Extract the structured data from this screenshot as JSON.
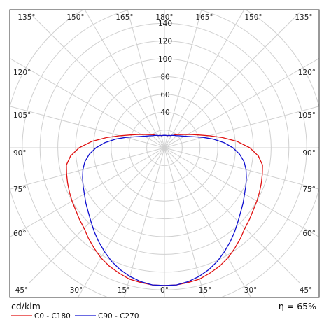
{
  "chart_data": {
    "type": "polar-luminous-intensity",
    "unit_label": "cd/klm",
    "efficiency_label": "η = 65%",
    "radial_range": [
      0,
      180
    ],
    "radial_ticks": [
      20,
      40,
      60,
      80,
      100,
      120,
      140,
      160,
      180
    ],
    "radial_tick_labels": [
      "40",
      "60",
      "80",
      "100",
      "120",
      "140"
    ],
    "angle_ticks_deg": [
      0,
      15,
      30,
      45,
      60,
      75,
      90,
      105,
      120,
      135,
      150,
      165,
      180
    ],
    "angle_labels": {
      "top": [
        "135°",
        "150°",
        "165°",
        "180°",
        "165°",
        "150°",
        "135°"
      ],
      "left": [
        "120°",
        "105°",
        "90°",
        "75°",
        "60°"
      ],
      "right": [
        "120°",
        "105°",
        "90°",
        "75°",
        "60°"
      ],
      "bottom": [
        "45°",
        "30°",
        "15°",
        "0°",
        "15°",
        "30°",
        "45°"
      ]
    },
    "grid": true,
    "legend_position": "bottom-left",
    "series": [
      {
        "name": "C0 - C180",
        "color": "#e01010",
        "angles_deg": [
          0,
          5,
          10,
          15,
          20,
          25,
          30,
          35,
          40,
          45,
          50,
          55,
          60,
          65,
          70,
          75,
          80,
          85,
          90,
          95,
          100,
          105,
          110,
          115,
          120,
          125,
          130,
          135,
          140,
          145,
          150,
          155,
          160,
          165,
          170,
          175,
          180
        ],
        "values": [
          155,
          155,
          154,
          153,
          150,
          147,
          143,
          138,
          133,
          128,
          125,
          122,
          120,
          118,
          116,
          114,
          112,
          106,
          96,
          82,
          66,
          52,
          42,
          35,
          30,
          26,
          23,
          21,
          19,
          17,
          16,
          15,
          15,
          14,
          14,
          14,
          14
        ]
      },
      {
        "name": "C90 - C270",
        "color": "#1010d0",
        "angles_deg": [
          0,
          5,
          10,
          15,
          20,
          25,
          30,
          35,
          40,
          45,
          50,
          55,
          60,
          65,
          70,
          75,
          80,
          85,
          90,
          95,
          100,
          105,
          110,
          115,
          120,
          125,
          130,
          135,
          140,
          145,
          150,
          155,
          160,
          165,
          170,
          175,
          180
        ],
        "values": [
          155,
          155,
          153,
          150,
          146,
          141,
          135,
          129,
          123,
          117,
          112,
          108,
          104,
          101,
          98,
          95,
          91,
          85,
          77,
          67,
          56,
          45,
          36,
          30,
          26,
          23,
          21,
          19,
          18,
          17,
          16,
          15,
          15,
          14,
          14,
          14,
          14
        ]
      }
    ]
  }
}
